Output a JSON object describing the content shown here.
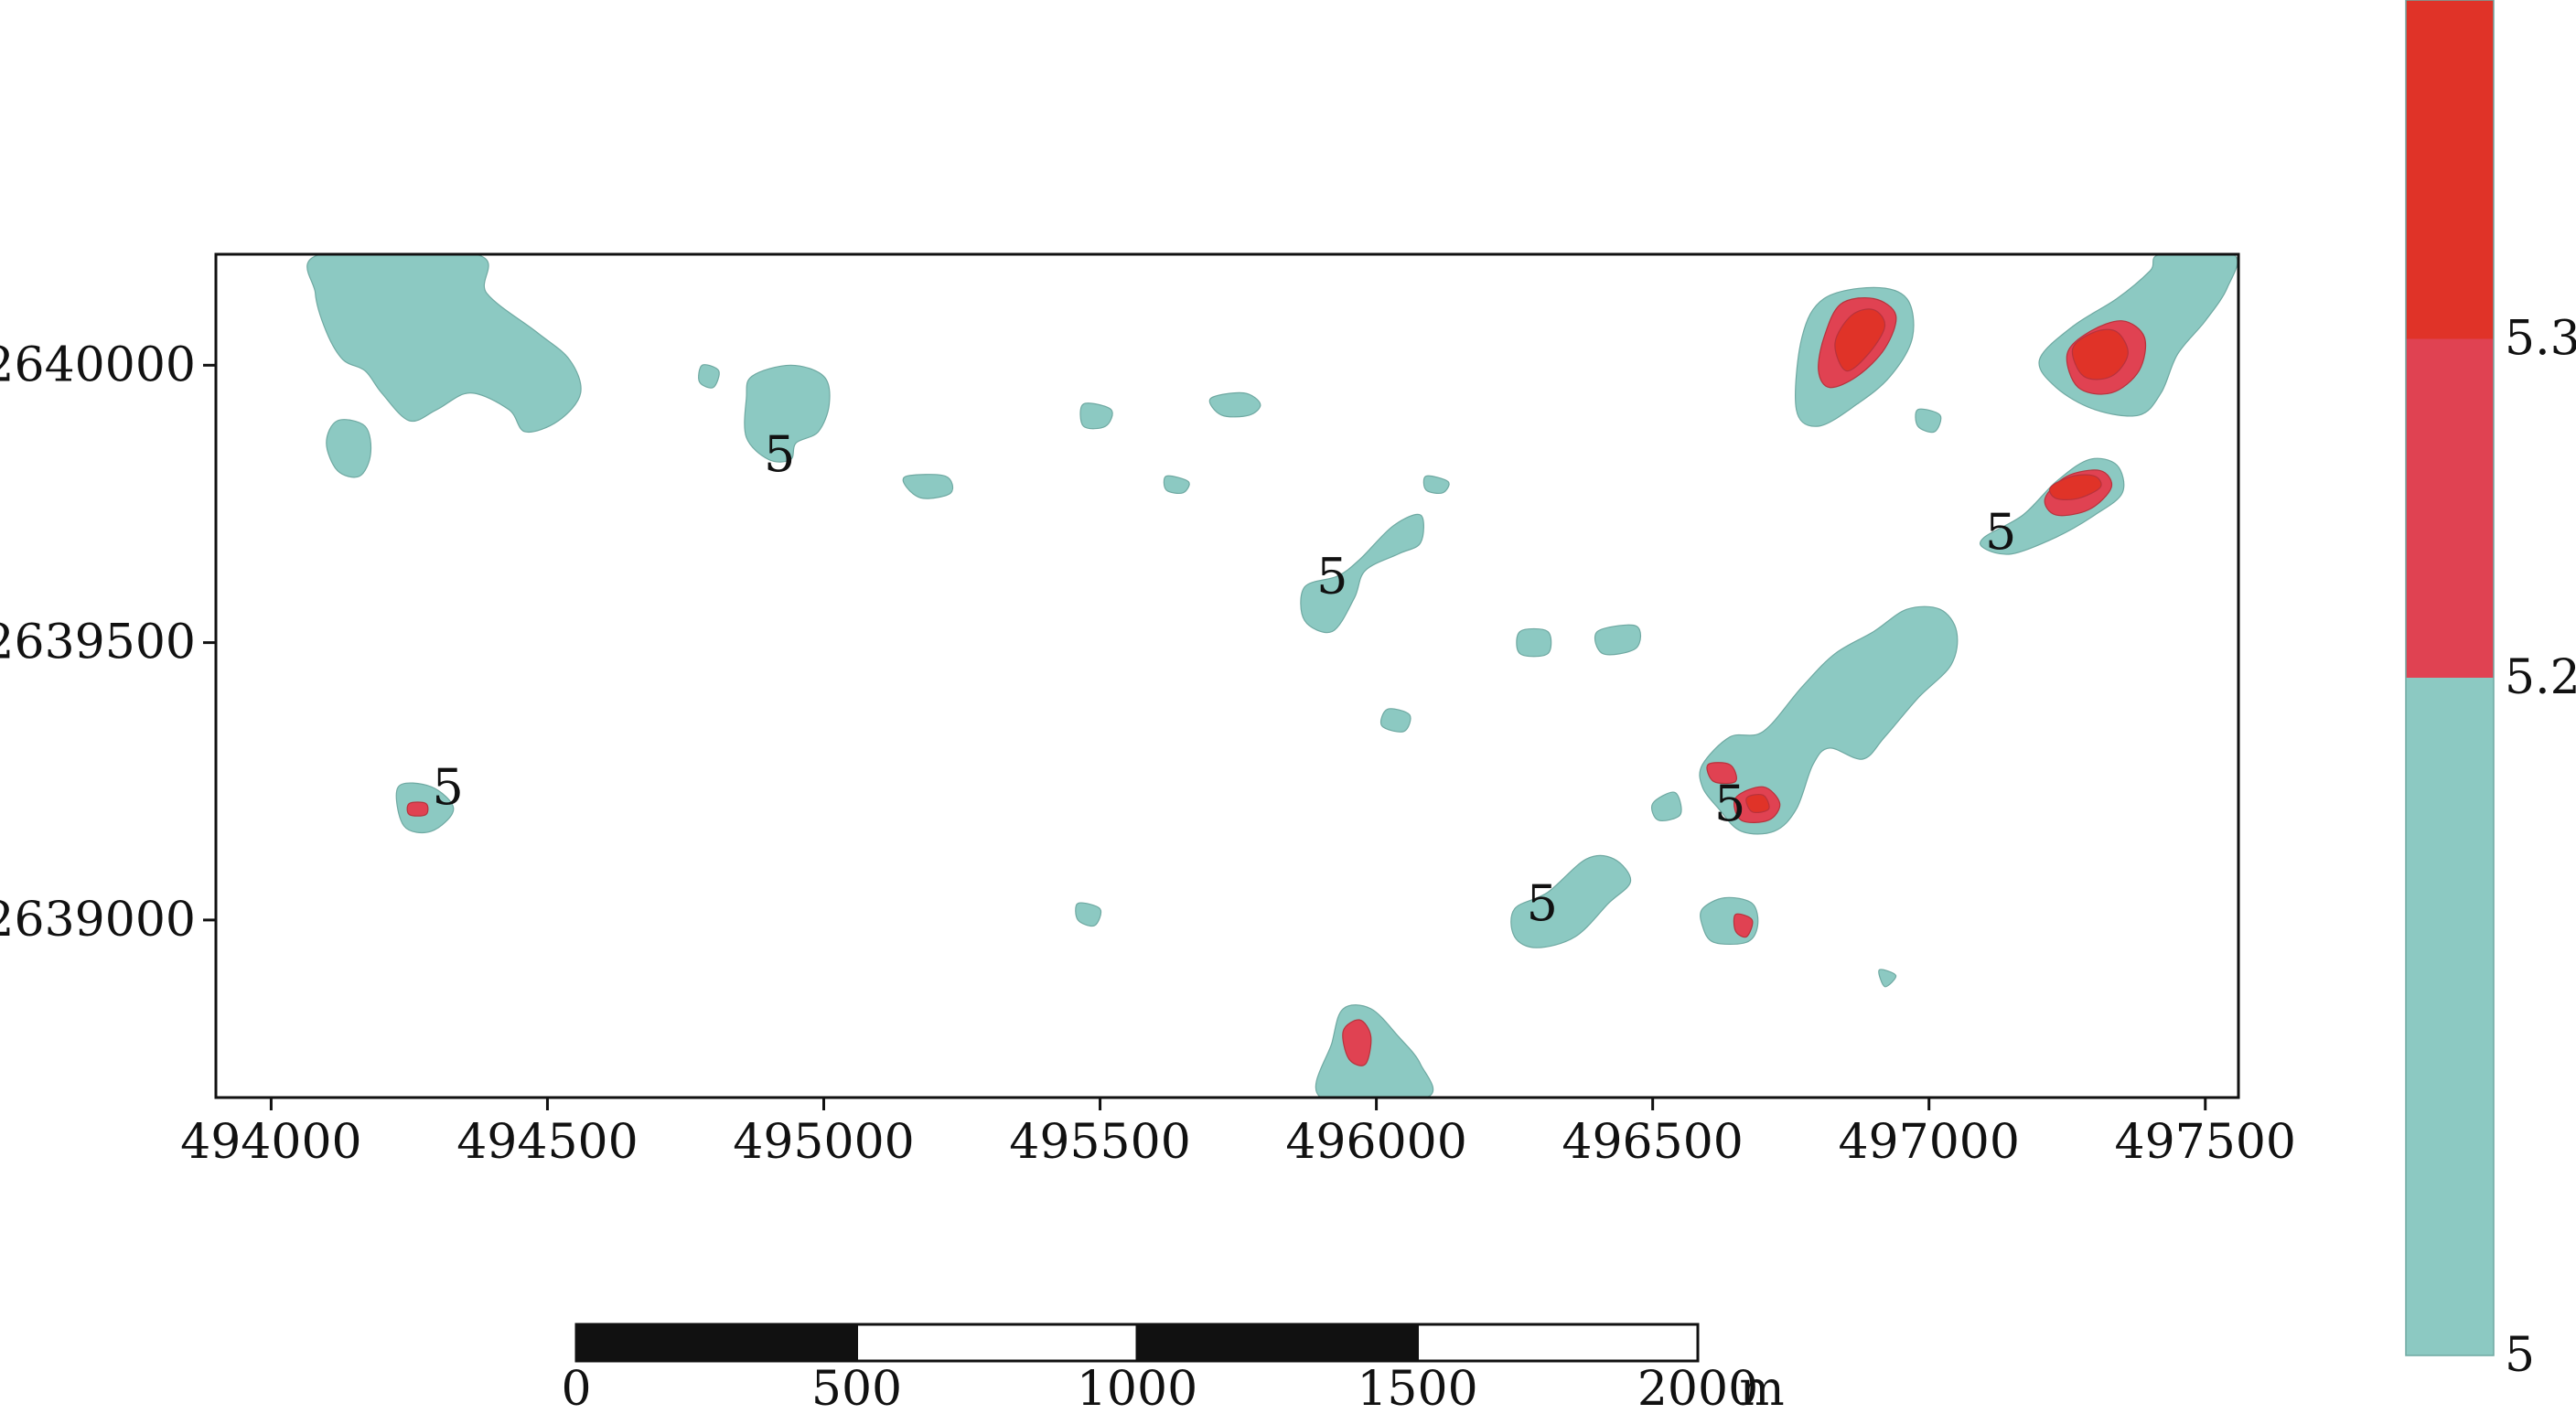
{
  "chart_data": {
    "type": "contour",
    "xlim": [
      493900,
      497560
    ],
    "ylim": [
      2638680,
      2640200
    ],
    "x_ticks": [
      "494000",
      "494500",
      "495000",
      "495500",
      "496000",
      "496500",
      "497000",
      "497500"
    ],
    "y_ticks": [
      "2640000",
      "2639500",
      "2639000"
    ],
    "levels": [
      5,
      5.2,
      5.3
    ],
    "level_colors": [
      "#8cc9c2",
      "#e04252",
      "#e03328"
    ],
    "colorbar": {
      "labels": [
        "5",
        "5.2",
        "5.3"
      ],
      "bands": [
        {
          "from": 5,
          "to": 5.2,
          "color": "#8cc9c2"
        },
        {
          "from": 5.2,
          "to": 5.3,
          "color": "#e04252"
        },
        {
          "from": 5.3,
          "to": 5.4,
          "color": "#e03328"
        }
      ]
    },
    "contour_labels": [
      {
        "text": "5",
        "x": 494920,
        "y": 2639840
      },
      {
        "text": "5",
        "x": 495920,
        "y": 2639620
      },
      {
        "text": "5",
        "x": 497130,
        "y": 2639700
      },
      {
        "text": "5",
        "x": 494320,
        "y": 2639240
      },
      {
        "text": "5",
        "x": 496640,
        "y": 2639210
      },
      {
        "text": "5",
        "x": 496300,
        "y": 2639030
      }
    ],
    "regions": [
      {
        "level": 5,
        "pts": [
          [
            494090,
            2640200
          ],
          [
            494370,
            2640200
          ],
          [
            494390,
            2640130
          ],
          [
            494480,
            2640060
          ],
          [
            494540,
            2640010
          ],
          [
            494560,
            2639950
          ],
          [
            494520,
            2639900
          ],
          [
            494460,
            2639880
          ],
          [
            494430,
            2639920
          ],
          [
            494360,
            2639950
          ],
          [
            494300,
            2639920
          ],
          [
            494250,
            2639900
          ],
          [
            494200,
            2639950
          ],
          [
            494170,
            2639990
          ],
          [
            494130,
            2640010
          ],
          [
            494100,
            2640060
          ],
          [
            494080,
            2640130
          ]
        ]
      },
      {
        "level": 5,
        "pts": [
          [
            494120,
            2639900
          ],
          [
            494170,
            2639890
          ],
          [
            494180,
            2639840
          ],
          [
            494160,
            2639800
          ],
          [
            494120,
            2639810
          ],
          [
            494100,
            2639860
          ]
        ]
      },
      {
        "level": 5,
        "pts": [
          [
            494780,
            2640000
          ],
          [
            494810,
            2639990
          ],
          [
            494800,
            2639960
          ],
          [
            494775,
            2639970
          ]
        ]
      },
      {
        "level": 5,
        "pts": [
          [
            494870,
            2639980
          ],
          [
            494940,
            2640000
          ],
          [
            495000,
            2639980
          ],
          [
            495010,
            2639930
          ],
          [
            494990,
            2639880
          ],
          [
            494950,
            2639860
          ],
          [
            494940,
            2639830
          ],
          [
            494900,
            2639830
          ],
          [
            494860,
            2639870
          ],
          [
            494860,
            2639940
          ]
        ]
      },
      {
        "level": 5,
        "pts": [
          [
            495150,
            2639800
          ],
          [
            495220,
            2639800
          ],
          [
            495230,
            2639770
          ],
          [
            495180,
            2639760
          ],
          [
            495150,
            2639780
          ]
        ]
      },
      {
        "level": 5,
        "pts": [
          [
            495470,
            2639930
          ],
          [
            495520,
            2639920
          ],
          [
            495510,
            2639890
          ],
          [
            495470,
            2639890
          ]
        ]
      },
      {
        "level": 5,
        "pts": [
          [
            495700,
            2639940
          ],
          [
            495760,
            2639950
          ],
          [
            495790,
            2639930
          ],
          [
            495770,
            2639910
          ],
          [
            495720,
            2639910
          ]
        ]
      },
      {
        "level": 5,
        "pts": [
          [
            495620,
            2639800
          ],
          [
            495660,
            2639790
          ],
          [
            495650,
            2639770
          ],
          [
            495620,
            2639775
          ]
        ]
      },
      {
        "level": 5,
        "pts": [
          [
            496090,
            2639800
          ],
          [
            496130,
            2639790
          ],
          [
            496120,
            2639770
          ],
          [
            496090,
            2639775
          ]
        ]
      },
      {
        "level": 5,
        "pts": [
          [
            495870,
            2639600
          ],
          [
            495930,
            2639620
          ],
          [
            495970,
            2639650
          ],
          [
            496030,
            2639710
          ],
          [
            496080,
            2639730
          ],
          [
            496080,
            2639680
          ],
          [
            496040,
            2639660
          ],
          [
            495980,
            2639630
          ],
          [
            495960,
            2639580
          ],
          [
            495920,
            2639520
          ],
          [
            495870,
            2639540
          ]
        ]
      },
      {
        "level": 5,
        "pts": [
          [
            496020,
            2639380
          ],
          [
            496060,
            2639370
          ],
          [
            496050,
            2639340
          ],
          [
            496010,
            2639350
          ]
        ]
      },
      {
        "level": 5,
        "pts": [
          [
            496260,
            2639520
          ],
          [
            496310,
            2639520
          ],
          [
            496310,
            2639480
          ],
          [
            496260,
            2639480
          ]
        ]
      },
      {
        "level": 5,
        "pts": [
          [
            496400,
            2639520
          ],
          [
            496470,
            2639530
          ],
          [
            496470,
            2639490
          ],
          [
            496410,
            2639480
          ]
        ]
      },
      {
        "level": 5,
        "pts": [
          [
            494230,
            2639240
          ],
          [
            494290,
            2639240
          ],
          [
            494330,
            2639200
          ],
          [
            494290,
            2639160
          ],
          [
            494240,
            2639170
          ]
        ]
      },
      {
        "level": 5,
        "pts": [
          [
            495460,
            2639030
          ],
          [
            495500,
            2639020
          ],
          [
            495490,
            2638990
          ],
          [
            495460,
            2639000
          ]
        ]
      },
      {
        "level": 5,
        "pts": [
          [
            496250,
            2639020
          ],
          [
            496310,
            2639050
          ],
          [
            496380,
            2639110
          ],
          [
            496430,
            2639110
          ],
          [
            496460,
            2639070
          ],
          [
            496420,
            2639030
          ],
          [
            496360,
            2638970
          ],
          [
            496290,
            2638950
          ],
          [
            496250,
            2638970
          ]
        ]
      },
      {
        "level": 5,
        "pts": [
          [
            496500,
            2639210
          ],
          [
            496540,
            2639230
          ],
          [
            496550,
            2639190
          ],
          [
            496510,
            2639180
          ]
        ]
      },
      {
        "level": 5,
        "pts": [
          [
            496590,
            2639280
          ],
          [
            496640,
            2639330
          ],
          [
            496700,
            2639340
          ],
          [
            496770,
            2639420
          ],
          [
            496830,
            2639480
          ],
          [
            496900,
            2639520
          ],
          [
            496960,
            2639560
          ],
          [
            497020,
            2639560
          ],
          [
            497050,
            2639520
          ],
          [
            497040,
            2639460
          ],
          [
            496980,
            2639400
          ],
          [
            496920,
            2639330
          ],
          [
            496880,
            2639290
          ],
          [
            496820,
            2639310
          ],
          [
            496790,
            2639280
          ],
          [
            496760,
            2639200
          ],
          [
            496720,
            2639160
          ],
          [
            496660,
            2639160
          ],
          [
            496620,
            2639200
          ],
          [
            496590,
            2639240
          ]
        ]
      },
      {
        "level": 5,
        "pts": [
          [
            496590,
            2639020
          ],
          [
            496630,
            2639040
          ],
          [
            496680,
            2639030
          ],
          [
            496690,
            2638990
          ],
          [
            496670,
            2638960
          ],
          [
            496610,
            2638960
          ],
          [
            496590,
            2638990
          ]
        ]
      },
      {
        "level": 5,
        "pts": [
          [
            496910,
            2638910
          ],
          [
            496940,
            2638900
          ],
          [
            496920,
            2638880
          ]
        ]
      },
      {
        "level": 5,
        "pts": [
          [
            496770,
            2640050
          ],
          [
            496810,
            2640120
          ],
          [
            496900,
            2640140
          ],
          [
            496960,
            2640120
          ],
          [
            496970,
            2640050
          ],
          [
            496930,
            2639980
          ],
          [
            496870,
            2639930
          ],
          [
            496800,
            2639890
          ],
          [
            496760,
            2639920
          ]
        ]
      },
      {
        "level": 5,
        "pts": [
          [
            496980,
            2639920
          ],
          [
            497020,
            2639910
          ],
          [
            497010,
            2639880
          ],
          [
            496980,
            2639890
          ]
        ]
      },
      {
        "level": 5,
        "pts": [
          [
            497200,
            2640010
          ],
          [
            497260,
            2640070
          ],
          [
            497340,
            2640120
          ],
          [
            497400,
            2640170
          ],
          [
            497420,
            2640200
          ],
          [
            497550,
            2640200
          ],
          [
            497540,
            2640140
          ],
          [
            497500,
            2640080
          ],
          [
            497450,
            2640020
          ],
          [
            497420,
            2639950
          ],
          [
            497380,
            2639910
          ],
          [
            497300,
            2639920
          ],
          [
            497230,
            2639960
          ]
        ]
      },
      {
        "level": 5,
        "pts": [
          [
            497100,
            2639690
          ],
          [
            497170,
            2639730
          ],
          [
            497230,
            2639790
          ],
          [
            497290,
            2639830
          ],
          [
            497340,
            2639820
          ],
          [
            497350,
            2639770
          ],
          [
            497300,
            2639730
          ],
          [
            497230,
            2639690
          ],
          [
            497150,
            2639660
          ],
          [
            497100,
            2639670
          ]
        ]
      },
      {
        "level": 5,
        "pts": [
          [
            495900,
            2638680
          ],
          [
            496090,
            2638680
          ],
          [
            496080,
            2638740
          ],
          [
            496040,
            2638790
          ],
          [
            495990,
            2638840
          ],
          [
            495940,
            2638840
          ],
          [
            495920,
            2638780
          ]
        ]
      },
      {
        "level": 5.2,
        "pts": [
          [
            494250,
            2639210
          ],
          [
            494280,
            2639210
          ],
          [
            494280,
            2639190
          ],
          [
            494250,
            2639190
          ]
        ]
      },
      {
        "level": 5.2,
        "pts": [
          [
            496600,
            2639280
          ],
          [
            496640,
            2639280
          ],
          [
            496650,
            2639250
          ],
          [
            496610,
            2639250
          ]
        ]
      },
      {
        "level": 5.2,
        "pts": [
          [
            496650,
            2639220
          ],
          [
            496700,
            2639240
          ],
          [
            496730,
            2639210
          ],
          [
            496710,
            2639180
          ],
          [
            496660,
            2639180
          ]
        ]
      },
      {
        "level": 5.2,
        "pts": [
          [
            496650,
            2639010
          ],
          [
            496680,
            2639000
          ],
          [
            496670,
            2638970
          ],
          [
            496650,
            2638980
          ]
        ]
      },
      {
        "level": 5.2,
        "pts": [
          [
            495940,
            2638800
          ],
          [
            495970,
            2638820
          ],
          [
            495990,
            2638790
          ],
          [
            495980,
            2638740
          ],
          [
            495950,
            2638750
          ]
        ]
      },
      {
        "level": 5.2,
        "pts": [
          [
            496810,
            2640050
          ],
          [
            496840,
            2640110
          ],
          [
            496900,
            2640120
          ],
          [
            496940,
            2640090
          ],
          [
            496920,
            2640030
          ],
          [
            496870,
            2639980
          ],
          [
            496820,
            2639960
          ],
          [
            496800,
            2639990
          ]
        ]
      },
      {
        "level": 5.2,
        "pts": [
          [
            497250,
            2640020
          ],
          [
            497290,
            2640060
          ],
          [
            497350,
            2640080
          ],
          [
            497390,
            2640050
          ],
          [
            497380,
            2639990
          ],
          [
            497330,
            2639950
          ],
          [
            497270,
            2639960
          ]
        ]
      },
      {
        "level": 5.2,
        "pts": [
          [
            497210,
            2639760
          ],
          [
            497250,
            2639800
          ],
          [
            497310,
            2639810
          ],
          [
            497330,
            2639780
          ],
          [
            497290,
            2639740
          ],
          [
            497230,
            2639730
          ]
        ]
      },
      {
        "level": 5.3,
        "pts": [
          [
            496830,
            2640040
          ],
          [
            496860,
            2640090
          ],
          [
            496900,
            2640100
          ],
          [
            496920,
            2640070
          ],
          [
            496890,
            2640020
          ],
          [
            496850,
            2639990
          ]
        ]
      },
      {
        "level": 5.3,
        "pts": [
          [
            497260,
            2640030
          ],
          [
            497300,
            2640060
          ],
          [
            497340,
            2640060
          ],
          [
            497360,
            2640020
          ],
          [
            497330,
            2639980
          ],
          [
            497280,
            2639980
          ]
        ]
      },
      {
        "level": 5.3,
        "pts": [
          [
            497220,
            2639780
          ],
          [
            497260,
            2639800
          ],
          [
            497300,
            2639800
          ],
          [
            497310,
            2639780
          ],
          [
            497270,
            2639760
          ],
          [
            497230,
            2639760
          ]
        ]
      },
      {
        "level": 5.3,
        "pts": [
          [
            496670,
            2639220
          ],
          [
            496700,
            2639225
          ],
          [
            496710,
            2639200
          ],
          [
            496680,
            2639195
          ]
        ]
      }
    ]
  },
  "scale_bar": {
    "labels": [
      "0",
      "500",
      "1000",
      "1500",
      "2000"
    ],
    "unit": "m"
  }
}
